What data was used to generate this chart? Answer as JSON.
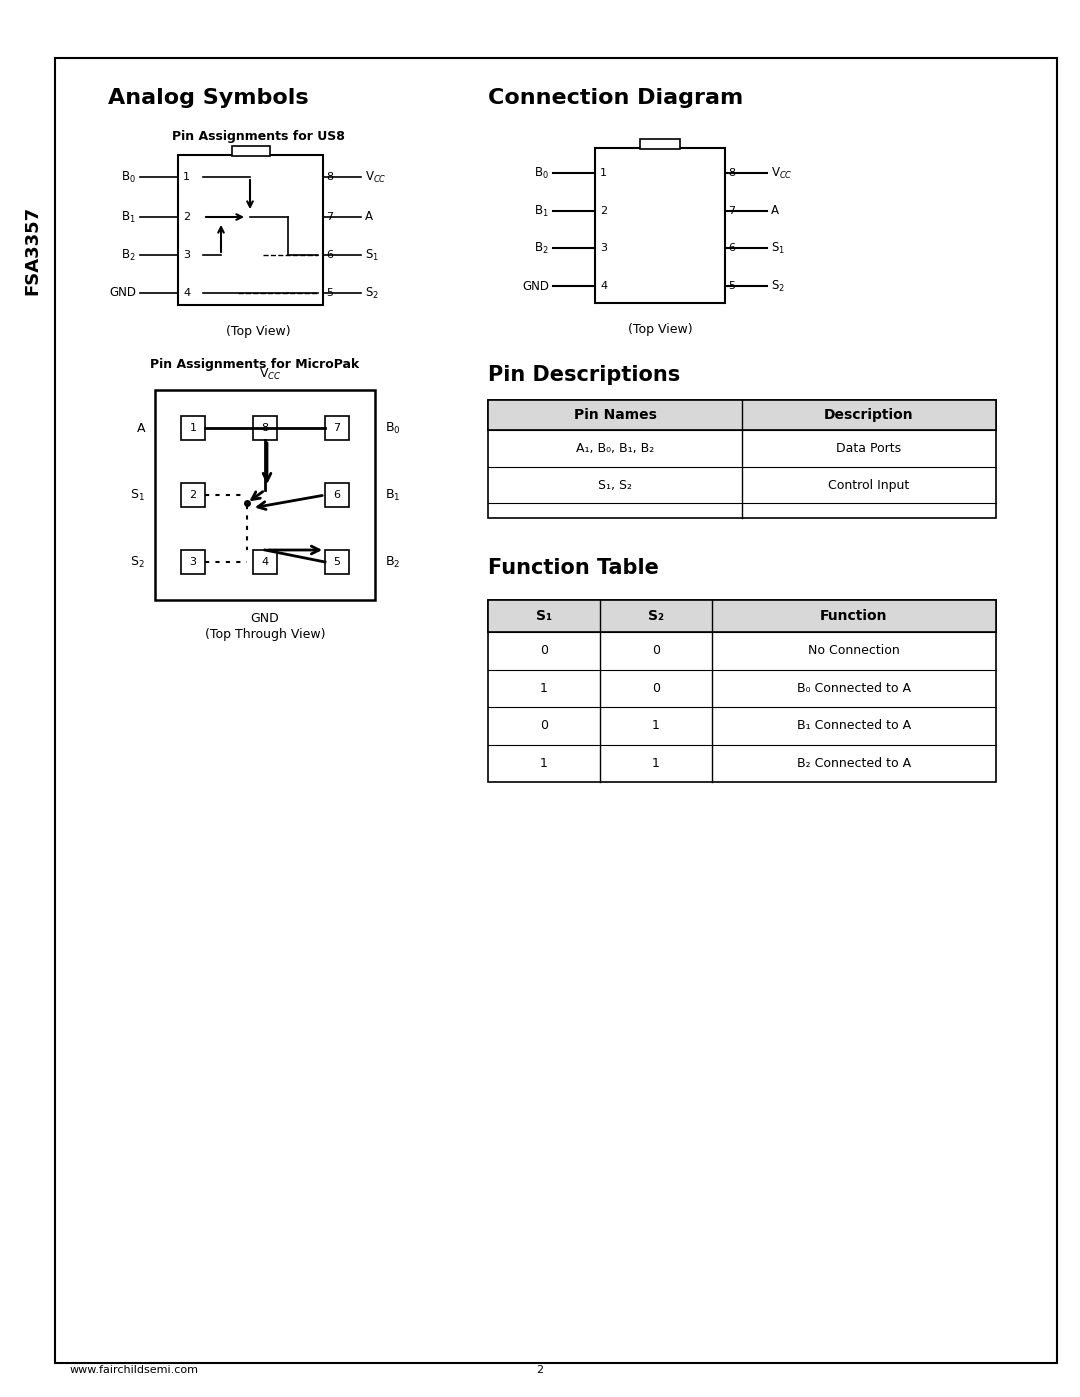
{
  "title_analog": "Analog Symbols",
  "title_connection": "Connection Diagram",
  "title_pin_desc": "Pin Descriptions",
  "title_function": "Function Table",
  "fsa_label": "FSA3357",
  "page_number": "2",
  "website": "www.fairchildsemi.com",
  "us8_subtitle": "Pin Assignments for US8",
  "us8_top_view": "(Top View)",
  "micropak_subtitle": "Pin Assignments for MicroPak",
  "micropak_top_view": "(Top Through View)",
  "conn_top_view": "(Top View)",
  "pin_desc_headers": [
    "Pin Names",
    "Description"
  ],
  "pin_desc_rows": [
    [
      "A₁, B₀, B₁, B₂",
      "Data Ports"
    ],
    [
      "S₁, S₂",
      "Control Input"
    ]
  ],
  "func_headers": [
    "S₁",
    "S₂",
    "Function"
  ],
  "func_rows": [
    [
      "0",
      "0",
      "No Connection"
    ],
    [
      "1",
      "0",
      "B₀ Connected to A"
    ],
    [
      "0",
      "1",
      "B₁ Connected to A"
    ],
    [
      "1",
      "1",
      "B₂ Connected to A"
    ]
  ],
  "bg_color": "#ffffff"
}
